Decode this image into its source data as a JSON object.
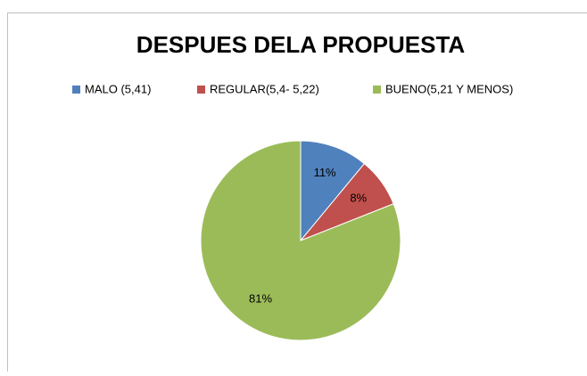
{
  "chart_data": {
    "type": "pie",
    "title": "DESPUES DELA PROPUESTA",
    "categories": [
      "MALO (5,41)",
      "REGULAR(5,4- 5,22)",
      "BUENO(5,21 Y MENOS)"
    ],
    "values": [
      11,
      8,
      81
    ],
    "value_labels": [
      "11%",
      "8%",
      "81%"
    ],
    "colors": [
      "#4f81bd",
      "#c0504d",
      "#9bbb59"
    ],
    "legend": "top"
  }
}
